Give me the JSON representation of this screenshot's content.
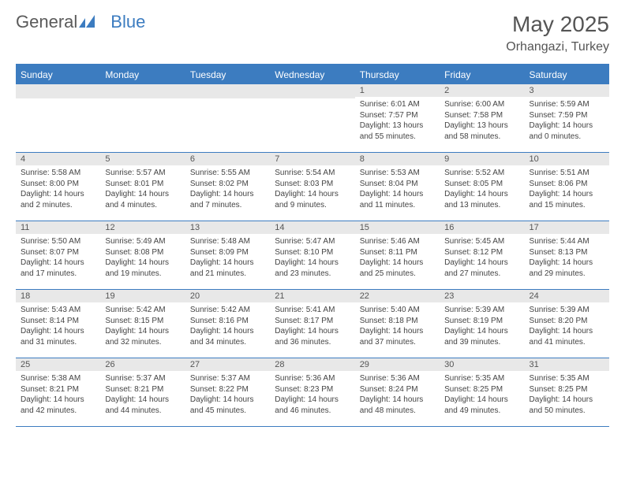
{
  "logo": {
    "part1": "General",
    "part2": "Blue"
  },
  "title": "May 2025",
  "location": "Orhangazi, Turkey",
  "headers": [
    "Sunday",
    "Monday",
    "Tuesday",
    "Wednesday",
    "Thursday",
    "Friday",
    "Saturday"
  ],
  "colors": {
    "accent": "#3c7cc0",
    "header_text": "#ffffff",
    "daynum_bg": "#e8e8e8",
    "text": "#555555"
  },
  "weeks": [
    [
      {
        "n": "",
        "s": []
      },
      {
        "n": "",
        "s": []
      },
      {
        "n": "",
        "s": []
      },
      {
        "n": "",
        "s": []
      },
      {
        "n": "1",
        "s": [
          "Sunrise: 6:01 AM",
          "Sunset: 7:57 PM",
          "Daylight: 13 hours and 55 minutes."
        ]
      },
      {
        "n": "2",
        "s": [
          "Sunrise: 6:00 AM",
          "Sunset: 7:58 PM",
          "Daylight: 13 hours and 58 minutes."
        ]
      },
      {
        "n": "3",
        "s": [
          "Sunrise: 5:59 AM",
          "Sunset: 7:59 PM",
          "Daylight: 14 hours and 0 minutes."
        ]
      }
    ],
    [
      {
        "n": "4",
        "s": [
          "Sunrise: 5:58 AM",
          "Sunset: 8:00 PM",
          "Daylight: 14 hours and 2 minutes."
        ]
      },
      {
        "n": "5",
        "s": [
          "Sunrise: 5:57 AM",
          "Sunset: 8:01 PM",
          "Daylight: 14 hours and 4 minutes."
        ]
      },
      {
        "n": "6",
        "s": [
          "Sunrise: 5:55 AM",
          "Sunset: 8:02 PM",
          "Daylight: 14 hours and 7 minutes."
        ]
      },
      {
        "n": "7",
        "s": [
          "Sunrise: 5:54 AM",
          "Sunset: 8:03 PM",
          "Daylight: 14 hours and 9 minutes."
        ]
      },
      {
        "n": "8",
        "s": [
          "Sunrise: 5:53 AM",
          "Sunset: 8:04 PM",
          "Daylight: 14 hours and 11 minutes."
        ]
      },
      {
        "n": "9",
        "s": [
          "Sunrise: 5:52 AM",
          "Sunset: 8:05 PM",
          "Daylight: 14 hours and 13 minutes."
        ]
      },
      {
        "n": "10",
        "s": [
          "Sunrise: 5:51 AM",
          "Sunset: 8:06 PM",
          "Daylight: 14 hours and 15 minutes."
        ]
      }
    ],
    [
      {
        "n": "11",
        "s": [
          "Sunrise: 5:50 AM",
          "Sunset: 8:07 PM",
          "Daylight: 14 hours and 17 minutes."
        ]
      },
      {
        "n": "12",
        "s": [
          "Sunrise: 5:49 AM",
          "Sunset: 8:08 PM",
          "Daylight: 14 hours and 19 minutes."
        ]
      },
      {
        "n": "13",
        "s": [
          "Sunrise: 5:48 AM",
          "Sunset: 8:09 PM",
          "Daylight: 14 hours and 21 minutes."
        ]
      },
      {
        "n": "14",
        "s": [
          "Sunrise: 5:47 AM",
          "Sunset: 8:10 PM",
          "Daylight: 14 hours and 23 minutes."
        ]
      },
      {
        "n": "15",
        "s": [
          "Sunrise: 5:46 AM",
          "Sunset: 8:11 PM",
          "Daylight: 14 hours and 25 minutes."
        ]
      },
      {
        "n": "16",
        "s": [
          "Sunrise: 5:45 AM",
          "Sunset: 8:12 PM",
          "Daylight: 14 hours and 27 minutes."
        ]
      },
      {
        "n": "17",
        "s": [
          "Sunrise: 5:44 AM",
          "Sunset: 8:13 PM",
          "Daylight: 14 hours and 29 minutes."
        ]
      }
    ],
    [
      {
        "n": "18",
        "s": [
          "Sunrise: 5:43 AM",
          "Sunset: 8:14 PM",
          "Daylight: 14 hours and 31 minutes."
        ]
      },
      {
        "n": "19",
        "s": [
          "Sunrise: 5:42 AM",
          "Sunset: 8:15 PM",
          "Daylight: 14 hours and 32 minutes."
        ]
      },
      {
        "n": "20",
        "s": [
          "Sunrise: 5:42 AM",
          "Sunset: 8:16 PM",
          "Daylight: 14 hours and 34 minutes."
        ]
      },
      {
        "n": "21",
        "s": [
          "Sunrise: 5:41 AM",
          "Sunset: 8:17 PM",
          "Daylight: 14 hours and 36 minutes."
        ]
      },
      {
        "n": "22",
        "s": [
          "Sunrise: 5:40 AM",
          "Sunset: 8:18 PM",
          "Daylight: 14 hours and 37 minutes."
        ]
      },
      {
        "n": "23",
        "s": [
          "Sunrise: 5:39 AM",
          "Sunset: 8:19 PM",
          "Daylight: 14 hours and 39 minutes."
        ]
      },
      {
        "n": "24",
        "s": [
          "Sunrise: 5:39 AM",
          "Sunset: 8:20 PM",
          "Daylight: 14 hours and 41 minutes."
        ]
      }
    ],
    [
      {
        "n": "25",
        "s": [
          "Sunrise: 5:38 AM",
          "Sunset: 8:21 PM",
          "Daylight: 14 hours and 42 minutes."
        ]
      },
      {
        "n": "26",
        "s": [
          "Sunrise: 5:37 AM",
          "Sunset: 8:21 PM",
          "Daylight: 14 hours and 44 minutes."
        ]
      },
      {
        "n": "27",
        "s": [
          "Sunrise: 5:37 AM",
          "Sunset: 8:22 PM",
          "Daylight: 14 hours and 45 minutes."
        ]
      },
      {
        "n": "28",
        "s": [
          "Sunrise: 5:36 AM",
          "Sunset: 8:23 PM",
          "Daylight: 14 hours and 46 minutes."
        ]
      },
      {
        "n": "29",
        "s": [
          "Sunrise: 5:36 AM",
          "Sunset: 8:24 PM",
          "Daylight: 14 hours and 48 minutes."
        ]
      },
      {
        "n": "30",
        "s": [
          "Sunrise: 5:35 AM",
          "Sunset: 8:25 PM",
          "Daylight: 14 hours and 49 minutes."
        ]
      },
      {
        "n": "31",
        "s": [
          "Sunrise: 5:35 AM",
          "Sunset: 8:25 PM",
          "Daylight: 14 hours and 50 minutes."
        ]
      }
    ]
  ]
}
